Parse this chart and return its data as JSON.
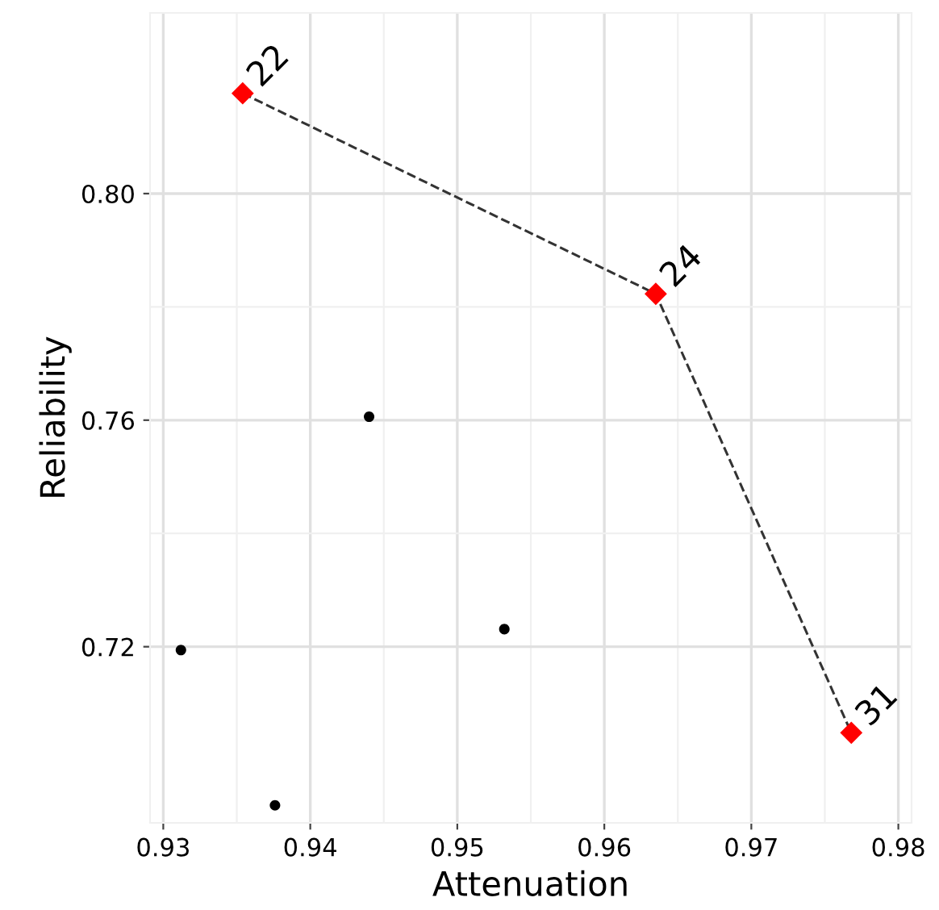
{
  "chart_data": {
    "type": "scatter",
    "xlabel": "Attenuation",
    "ylabel": "Reliability",
    "xlim": [
      0.9291,
      0.9809
    ],
    "ylim": [
      0.6889,
      0.8319
    ],
    "xticks": [
      0.93,
      0.94,
      0.95,
      0.96,
      0.97,
      0.98
    ],
    "yticks": [
      0.72,
      0.76,
      {
        "value": 0.8,
        "label": "0.80"
      }
    ],
    "grid": true,
    "legend": false,
    "series": [
      {
        "color": "#000000",
        "marker": "circle",
        "x": [
          0.9312,
          0.9376,
          0.944,
          0.9532
        ],
        "values": [
          0.7194,
          0.692,
          0.7606,
          0.7231
        ]
      },
      {
        "type": "line",
        "color": "#333333",
        "line_style": "dashed",
        "marker": "none",
        "x": [
          0.9354,
          0.9635,
          0.9768
        ],
        "values": [
          0.8177,
          0.7823,
          0.7048
        ]
      },
      {
        "color": "#ff0000",
        "marker": "diamond",
        "x": [
          0.9354,
          0.9635,
          0.9768
        ],
        "values": [
          0.8177,
          0.7823,
          0.7048
        ]
      }
    ],
    "annotations": [
      {
        "text": "22",
        "x": 0.9354,
        "y": 0.8177
      },
      {
        "text": "24",
        "x": 0.9635,
        "y": 0.7823
      },
      {
        "text": "31",
        "x": 0.9768,
        "y": 0.7048
      }
    ]
  }
}
